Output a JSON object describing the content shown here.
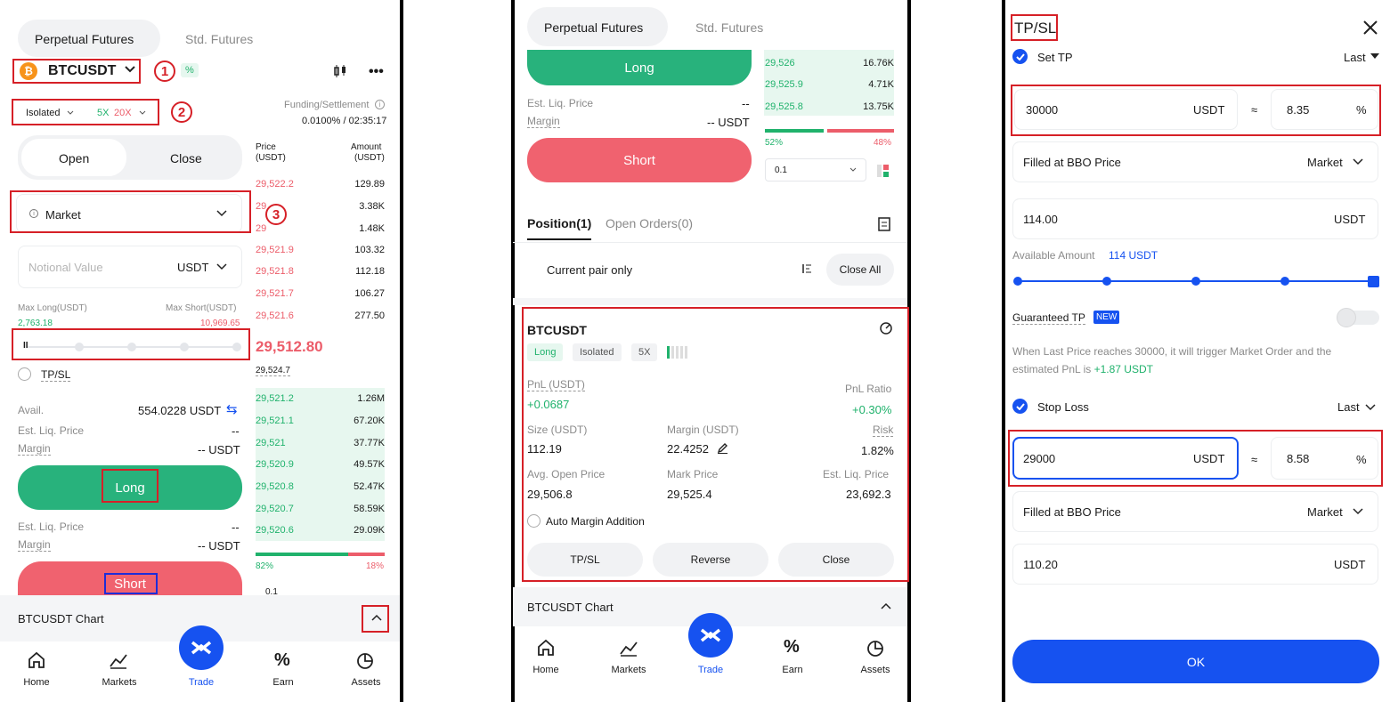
{
  "p1": {
    "tabs": [
      "Perpetual Futures",
      "Std. Futures"
    ],
    "pair": "BTCUSDT",
    "pct_badge": "%",
    "margin_mode": "Isolated",
    "leverage_long": "5X",
    "leverage_short": "20X",
    "funding_label": "Funding/Settlement",
    "funding_value": "0.0100% / 02:35:17",
    "open": "Open",
    "close": "Close",
    "order_type": "Market",
    "notional_placeholder": "Notional Value",
    "notional_unit": "USDT",
    "max_long_label": "Max Long(USDT)",
    "max_long": "2,763.18",
    "max_short_label": "Max Short(USDT)",
    "max_short": "10,969.65",
    "slider_handle": "II",
    "tpsl": "TP/SL",
    "avail_label": "Avail.",
    "avail_value": "554.0228 USDT",
    "est_liq_label": "Est. Liq. Price",
    "est_liq_value": "--",
    "margin_label": "Margin",
    "margin_value": "-- USDT",
    "long": "Long",
    "short": "Short",
    "ob_price_h": "Price",
    "ob_price_u": "(USDT)",
    "ob_amt_h": "Amount",
    "ob_amt_u": "(USDT)",
    "asks": [
      [
        "29,522.2",
        "129.89"
      ],
      [
        "29",
        "3.38K"
      ],
      [
        "29",
        "1.48K"
      ],
      [
        "29,521.9",
        "103.32"
      ],
      [
        "29,521.8",
        "112.18"
      ],
      [
        "29,521.7",
        "106.27"
      ],
      [
        "29,521.6",
        "277.50"
      ]
    ],
    "mid_price": "29,512.80",
    "mark_price": "29,524.7",
    "bids": [
      [
        "29,521.2",
        "1.26M"
      ],
      [
        "29,521.1",
        "67.20K"
      ],
      [
        "29,521",
        "37.77K"
      ],
      [
        "29,520.9",
        "49.57K"
      ],
      [
        "29,520.8",
        "52.47K"
      ],
      [
        "29,520.7",
        "58.59K"
      ],
      [
        "29,520.6",
        "29.09K"
      ]
    ],
    "bid_pct": "82%",
    "ask_pct": "18%",
    "depth": "0.1",
    "chart_label": "BTCUSDT Chart",
    "ann": [
      "1",
      "2",
      "3"
    ],
    "nav": [
      "Home",
      "Markets",
      "Trade",
      "Earn",
      "Assets"
    ]
  },
  "p2": {
    "tabs": [
      "Perpetual Futures",
      "Std. Futures"
    ],
    "long": "Long",
    "short": "Short",
    "est_liq_label": "Est. Liq. Price",
    "est_liq_value": "--",
    "margin_label": "Margin",
    "margin_value": "-- USDT",
    "bids": [
      [
        "29,526",
        "16.76K"
      ],
      [
        "29,525.9",
        "4.71K"
      ],
      [
        "29,525.8",
        "13.75K"
      ]
    ],
    "bid_pct": "52%",
    "ask_pct": "48%",
    "depth": "0.1",
    "position_tab": "Position(1)",
    "orders_tab": "Open Orders(0)",
    "current_pair": "Current pair only",
    "close_all": "Close All",
    "card": {
      "pair": "BTCUSDT",
      "side": "Long",
      "mode": "Isolated",
      "lev": "5X",
      "pnl_label": "PnL (USDT)",
      "pnl": "+0.0687",
      "pnl_ratio_label": "PnL Ratio",
      "pnl_ratio": "+0.30%",
      "size_label": "Size (USDT)",
      "size": "112.19",
      "margin_label": "Margin (USDT)",
      "margin": "22.4252",
      "risk_label": "Risk",
      "risk": "1.82%",
      "open_label": "Avg. Open Price",
      "open": "29,506.8",
      "mark_label": "Mark Price",
      "mark": "29,525.4",
      "liq_label": "Est. Liq. Price",
      "liq": "23,692.3",
      "auto_margin": "Auto Margin Addition",
      "btn_tpsl": "TP/SL",
      "btn_reverse": "Reverse",
      "btn_close": "Close"
    },
    "chart_label": "BTCUSDT Chart",
    "nav": [
      "Home",
      "Markets",
      "Trade",
      "Earn",
      "Assets"
    ]
  },
  "p3": {
    "title": "TP/SL",
    "set_tp": "Set TP",
    "last": "Last",
    "tp_price": "30000",
    "unit": "USDT",
    "approx": "≈",
    "tp_pct": "8.35",
    "pct_sign": "%",
    "filled_bbo": "Filled at BBO Price",
    "market": "Market",
    "tp_amount": "114.00",
    "avail_label": "Available Amount",
    "avail_value": "114 USDT",
    "guaranteed": "Guaranteed TP",
    "new_badge": "NEW",
    "desc_pre": "When Last Price reaches 30000, it will trigger Market Order and the estimated PnL is ",
    "desc_pnl": "+1.87 USDT",
    ".": ".",
    "stop_loss": "Stop Loss",
    "sl_price": "29000",
    "sl_pct": "8.58",
    "sl_amount": "110.20",
    "ok": "OK"
  },
  "colors": {
    "green": "#28b27c",
    "red": "#f0626f",
    "blue": "#1652f0",
    "annotation_red": "#d62027",
    "annotation_blue": "#1e2dd8"
  }
}
